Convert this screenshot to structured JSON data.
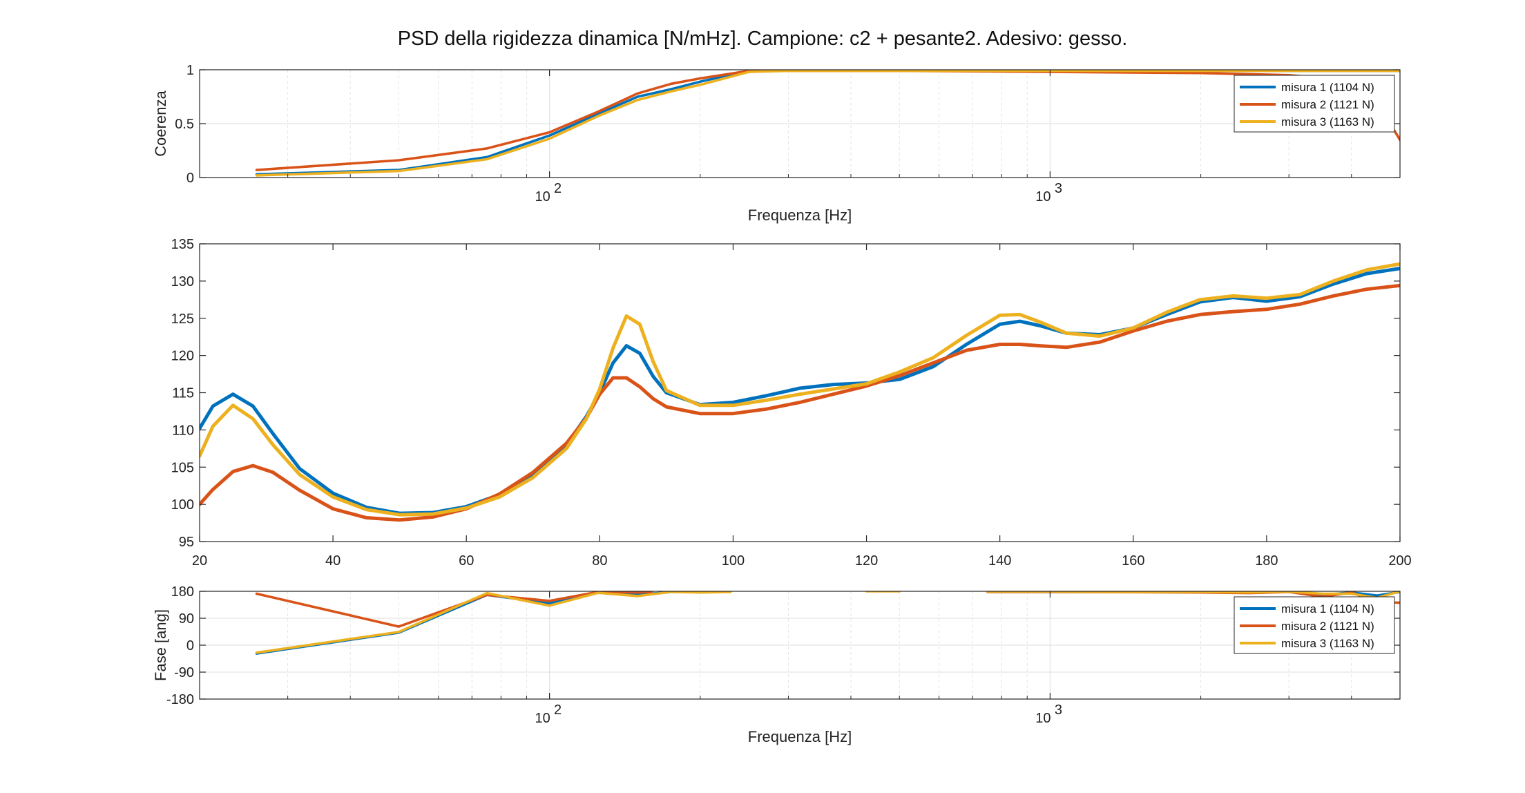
{
  "title": "PSD della rigidezza dinamica [N/mHz]. Campione: c2 + pesante2. Adesivo: gesso.",
  "colors": {
    "s1": "#0072BD",
    "s2": "#D95319",
    "s3": "#EDB120",
    "grid": "#e3e3e3",
    "axis": "#262626"
  },
  "chart_data": [
    {
      "type": "line",
      "xlabel": "Frequenza [Hz]",
      "ylabel": "Coerenza",
      "xscale": "log",
      "xlim": [
        20,
        5000
      ],
      "ylim": [
        0,
        1
      ],
      "xticks": [
        {
          "value": 100,
          "base": "10",
          "exp": "2"
        },
        {
          "value": 1000,
          "base": "10",
          "exp": "3"
        }
      ],
      "yticks": [
        {
          "value": 0,
          "label": "0"
        },
        {
          "value": 0.5,
          "label": "0.5"
        },
        {
          "value": 1,
          "label": "1"
        }
      ],
      "grid": true,
      "legend": "top-right",
      "series": [
        {
          "name": "misura 1 (1104 N)",
          "color": "#0072BD",
          "x": [
            26,
            50,
            75,
            100,
            125,
            150,
            175,
            200,
            250,
            300,
            500,
            1000,
            2000,
            3000,
            4000,
            5000
          ],
          "y": [
            0.03,
            0.07,
            0.19,
            0.39,
            0.59,
            0.75,
            0.82,
            0.89,
            0.99,
            1.0,
            1.0,
            1.0,
            0.99,
            0.99,
            0.99,
            0.99
          ]
        },
        {
          "name": "misura 2 (1121 N)",
          "color": "#D95319",
          "x": [
            26,
            50,
            75,
            100,
            125,
            150,
            175,
            200,
            250,
            300,
            500,
            1000,
            2000,
            3000,
            4000,
            4500,
            5000
          ],
          "y": [
            0.07,
            0.16,
            0.27,
            0.42,
            0.61,
            0.78,
            0.87,
            0.92,
            0.99,
            0.99,
            0.99,
            0.98,
            0.97,
            0.95,
            0.9,
            0.7,
            0.35
          ]
        },
        {
          "name": "misura 3 (1163 N)",
          "color": "#EDB120",
          "x": [
            26,
            50,
            75,
            100,
            125,
            150,
            175,
            200,
            250,
            300,
            500,
            1000,
            2000,
            3000,
            4000,
            5000
          ],
          "y": [
            0.02,
            0.06,
            0.17,
            0.36,
            0.57,
            0.72,
            0.8,
            0.86,
            0.98,
            0.99,
            0.99,
            0.99,
            0.99,
            0.99,
            0.99,
            0.99
          ]
        }
      ]
    },
    {
      "type": "line",
      "xlim": [
        20,
        200
      ],
      "ylim": [
        95,
        135
      ],
      "xticks": [
        {
          "value": 20,
          "label": "20"
        },
        {
          "value": 40,
          "label": "40"
        },
        {
          "value": 60,
          "label": "60"
        },
        {
          "value": 80,
          "label": "80"
        },
        {
          "value": 100,
          "label": "100"
        },
        {
          "value": 120,
          "label": "120"
        },
        {
          "value": 140,
          "label": "140"
        },
        {
          "value": 160,
          "label": "160"
        },
        {
          "value": 180,
          "label": "180"
        },
        {
          "value": 200,
          "label": "200"
        }
      ],
      "yticks": [
        {
          "value": 95,
          "label": "95"
        },
        {
          "value": 100,
          "label": "100"
        },
        {
          "value": 105,
          "label": "105"
        },
        {
          "value": 110,
          "label": "110"
        },
        {
          "value": 115,
          "label": "115"
        },
        {
          "value": 120,
          "label": "120"
        },
        {
          "value": 125,
          "label": "125"
        },
        {
          "value": 130,
          "label": "130"
        },
        {
          "value": 135,
          "label": "135"
        }
      ],
      "grid": false,
      "series": [
        {
          "color": "#0072BD",
          "x": [
            20,
            22,
            25,
            28,
            31,
            35,
            40,
            45,
            50,
            55,
            60,
            65,
            70,
            75,
            78,
            80,
            82,
            84,
            86,
            88,
            90,
            95,
            100,
            105,
            110,
            115,
            120,
            125,
            130,
            135,
            140,
            143,
            146,
            150,
            155,
            160,
            165,
            170,
            175,
            180,
            185,
            190,
            195,
            200
          ],
          "y": [
            110.2,
            113.2,
            114.8,
            113.2,
            109.5,
            104.8,
            101.5,
            99.6,
            98.8,
            98.9,
            99.7,
            101.3,
            104.0,
            108.0,
            111.8,
            115.0,
            119.0,
            121.3,
            120.3,
            117.2,
            115.0,
            113.4,
            113.7,
            114.6,
            115.6,
            116.1,
            116.3,
            116.8,
            118.5,
            121.5,
            124.2,
            124.6,
            124.0,
            123.0,
            122.8,
            123.7,
            125.5,
            127.2,
            127.8,
            127.3,
            127.9,
            129.6,
            131.0,
            131.7
          ]
        },
        {
          "color": "#D95319",
          "x": [
            20,
            22,
            25,
            28,
            31,
            35,
            40,
            45,
            50,
            55,
            60,
            65,
            70,
            75,
            78,
            80,
            82,
            84,
            86,
            88,
            90,
            95,
            100,
            105,
            110,
            115,
            120,
            125,
            130,
            135,
            140,
            143,
            146,
            150,
            155,
            160,
            165,
            170,
            175,
            180,
            185,
            190,
            195,
            200
          ],
          "y": [
            100.0,
            102.0,
            104.4,
            105.2,
            104.3,
            101.9,
            99.4,
            98.2,
            97.9,
            98.3,
            99.4,
            101.4,
            104.3,
            108.2,
            111.6,
            114.8,
            117.0,
            117.0,
            115.8,
            114.2,
            113.1,
            112.2,
            112.2,
            112.8,
            113.7,
            114.8,
            115.9,
            117.3,
            119.0,
            120.7,
            121.5,
            121.5,
            121.3,
            121.1,
            121.8,
            123.3,
            124.6,
            125.5,
            125.9,
            126.2,
            126.9,
            128.0,
            128.9,
            129.4
          ]
        },
        {
          "color": "#EDB120",
          "x": [
            20,
            22,
            25,
            28,
            31,
            35,
            40,
            45,
            50,
            55,
            60,
            65,
            70,
            75,
            78,
            80,
            82,
            84,
            86,
            88,
            90,
            95,
            100,
            105,
            110,
            115,
            120,
            125,
            130,
            135,
            140,
            143,
            146,
            150,
            155,
            160,
            165,
            170,
            175,
            180,
            185,
            190,
            195,
            200
          ],
          "y": [
            106.5,
            110.5,
            113.3,
            111.5,
            108.0,
            104.0,
            101.0,
            99.3,
            98.6,
            98.7,
            99.5,
            101.0,
            103.6,
            107.5,
            111.5,
            115.5,
            121.0,
            125.3,
            124.2,
            119.2,
            115.3,
            113.3,
            113.3,
            114.0,
            114.8,
            115.5,
            116.2,
            117.8,
            119.7,
            122.7,
            125.4,
            125.5,
            124.5,
            123.0,
            122.6,
            123.7,
            125.8,
            127.5,
            128.0,
            127.7,
            128.2,
            130.0,
            131.5,
            132.3
          ]
        }
      ]
    },
    {
      "type": "line",
      "xlabel": "Frequenza [Hz]",
      "ylabel": "Fase [ang]",
      "xscale": "log",
      "xlim": [
        20,
        5000
      ],
      "ylim": [
        -180,
        180
      ],
      "xticks": [
        {
          "value": 100,
          "base": "10",
          "exp": "2"
        },
        {
          "value": 1000,
          "base": "10",
          "exp": "3"
        }
      ],
      "yticks": [
        {
          "value": -180,
          "label": "-180"
        },
        {
          "value": -90,
          "label": "-90"
        },
        {
          "value": 0,
          "label": "0"
        },
        {
          "value": 90,
          "label": "90"
        },
        {
          "value": 180,
          "label": "180"
        }
      ],
      "grid": true,
      "legend": "top-right",
      "series": [
        {
          "name": "misura 1 (1104 N)",
          "color": "#0072BD",
          "segments": [
            {
              "x": [
                26,
                50,
                75,
                100,
                125,
                150,
                175,
                200
              ],
              "y": [
                -28,
                42,
                168,
                140,
                178,
                168,
                178,
                178
              ]
            },
            {
              "x": [
                750,
                1000,
                1500,
                2000,
                2500,
                3000,
                3500,
                4000,
                4500,
                5000
              ],
              "y": [
                178,
                178,
                178,
                177,
                175,
                180,
                168,
                176,
                166,
                178
              ]
            }
          ]
        },
        {
          "name": "misura 2 (1121 N)",
          "color": "#D95319",
          "segments": [
            {
              "x": [
                26,
                50,
                75,
                100,
                125,
                150,
                160
              ],
              "y": [
                172,
                62,
                168,
                148,
                178,
                176,
                178
              ]
            },
            {
              "x": [
                750,
                1000,
                1500,
                2000,
                2500,
                3000,
                3500,
                4000,
                4500,
                5000
              ],
              "y": [
                178,
                178,
                177,
                176,
                174,
                178,
                162,
                176,
                144,
                142
              ]
            }
          ]
        },
        {
          "name": "misura 3 (1163 N)",
          "color": "#EDB120",
          "segments": [
            {
              "x": [
                26,
                50,
                75,
                100,
                125,
                150,
                175,
                200,
                230
              ],
              "y": [
                -25,
                44,
                174,
                132,
                175,
                164,
                178,
                176,
                178
              ]
            },
            {
              "x": [
                430,
                500
              ],
              "y": [
                180,
                180
              ]
            },
            {
              "x": [
                750,
                1000,
                1500,
                2000,
                2500,
                3000,
                3500,
                4000,
                4500,
                5000
              ],
              "y": [
                179,
                179,
                178,
                178,
                176,
                179,
                172,
                172,
                158,
                180
              ]
            }
          ]
        }
      ]
    }
  ]
}
